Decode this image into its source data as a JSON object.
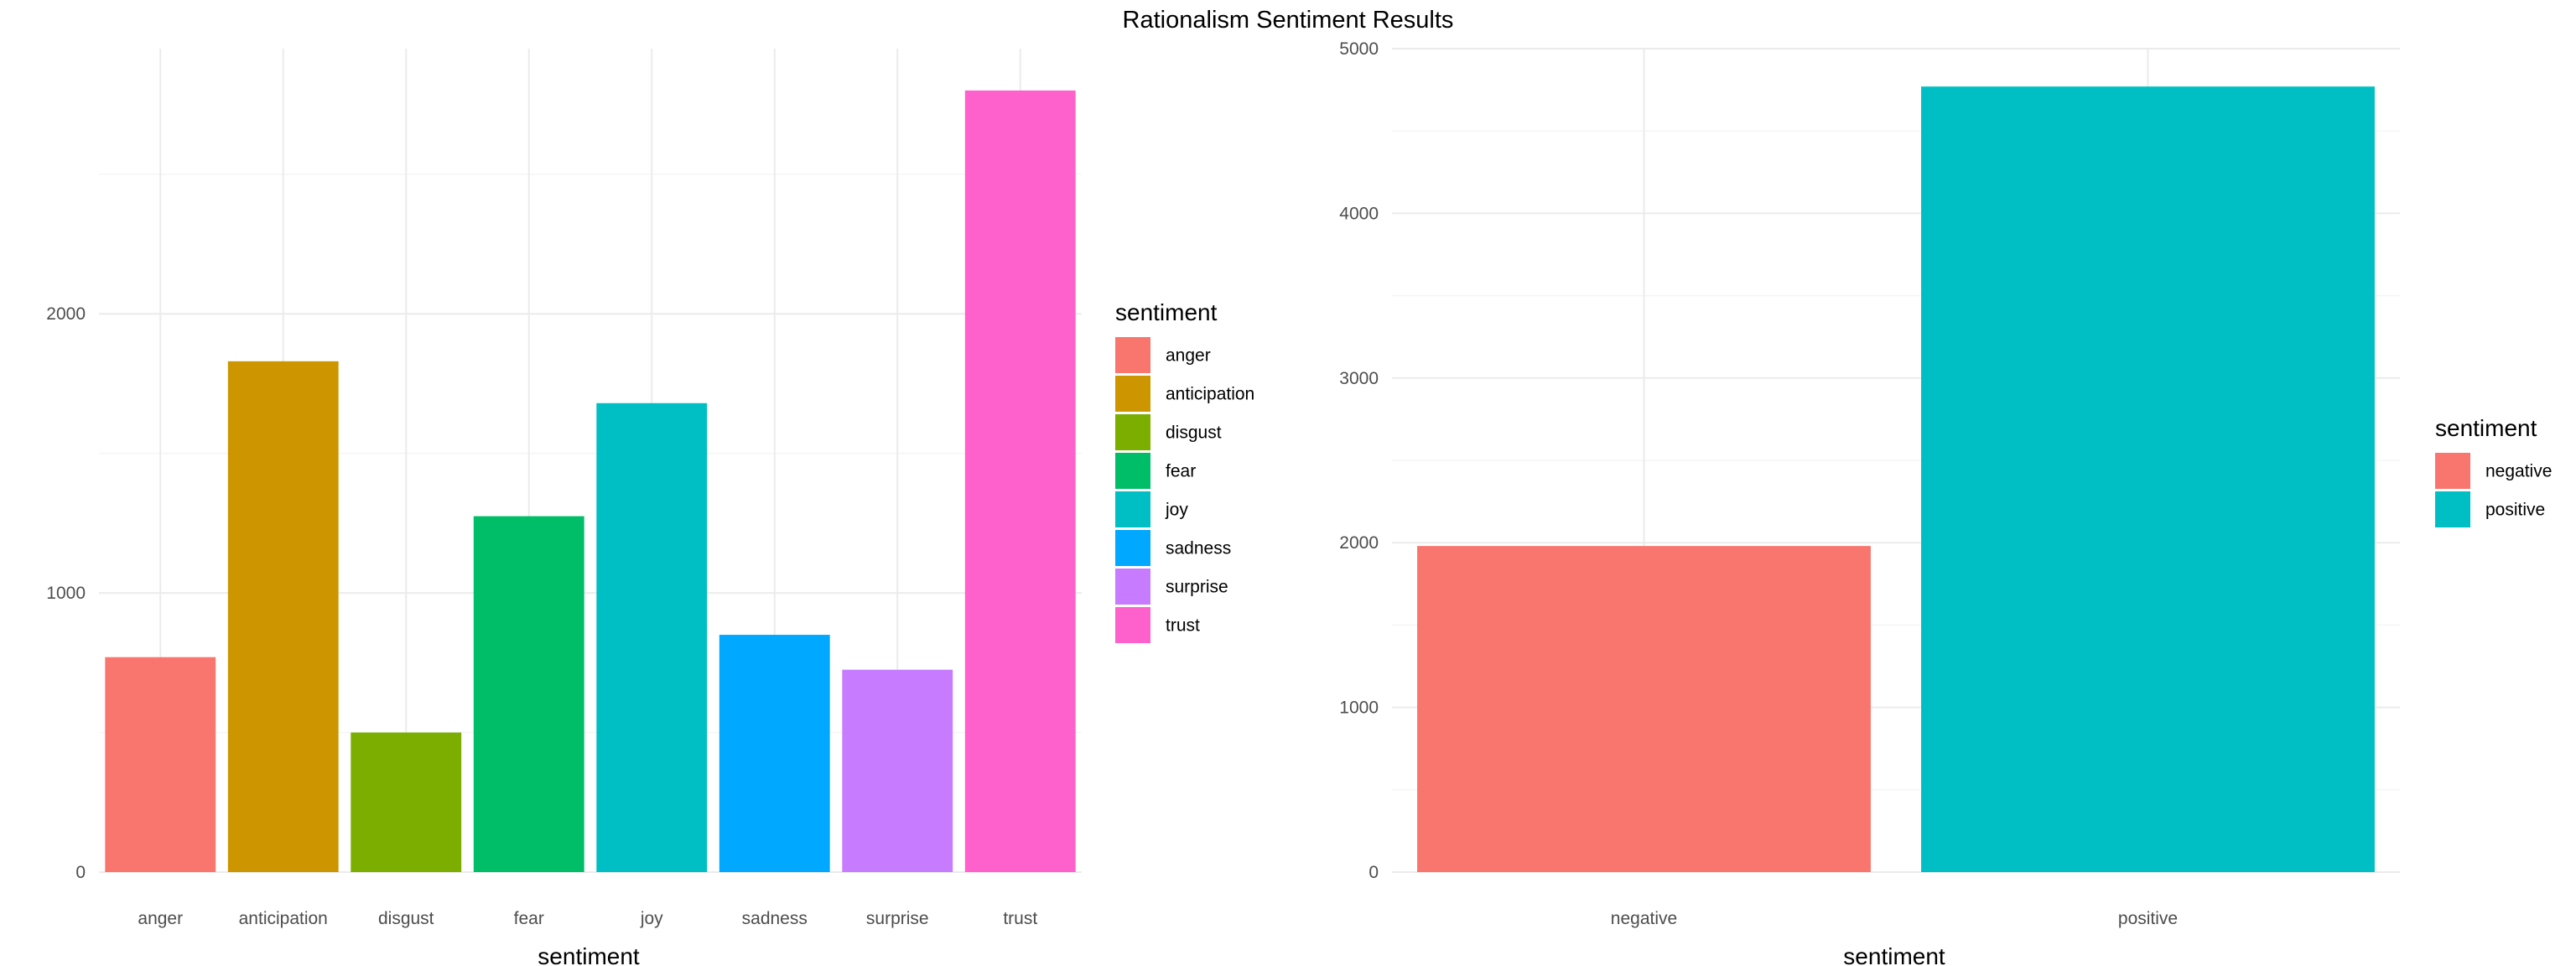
{
  "figure": {
    "title": "Rationalism Sentiment Results"
  },
  "chart_data": [
    {
      "type": "bar",
      "xlabel": "sentiment",
      "ylabel": "",
      "ylim": [
        0,
        2950
      ],
      "yticks": [
        0,
        1000,
        2000
      ],
      "grid": true,
      "legend_title": "sentiment",
      "legend_position": "right",
      "categories": [
        "anger",
        "anticipation",
        "disgust",
        "fear",
        "joy",
        "sadness",
        "surprise",
        "trust"
      ],
      "values": [
        770,
        1830,
        500,
        1275,
        1680,
        850,
        725,
        2800
      ],
      "colors": [
        "#F8766D",
        "#CD9600",
        "#7CAE00",
        "#00BE67",
        "#00BFC4",
        "#00A9FF",
        "#C77CFF",
        "#FF61CC"
      ]
    },
    {
      "type": "bar",
      "xlabel": "sentiment",
      "ylabel": "",
      "ylim": [
        0,
        5000
      ],
      "yticks": [
        0,
        1000,
        2000,
        3000,
        4000,
        5000
      ],
      "grid": true,
      "legend_title": "sentiment",
      "legend_position": "right",
      "categories": [
        "negative",
        "positive"
      ],
      "values": [
        1980,
        4770
      ],
      "colors": [
        "#F8766D",
        "#00BFC4"
      ]
    }
  ]
}
